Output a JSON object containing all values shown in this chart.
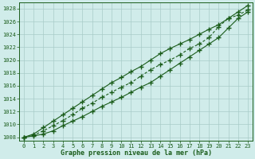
{
  "x": [
    0,
    1,
    2,
    3,
    4,
    5,
    6,
    7,
    8,
    9,
    10,
    11,
    12,
    13,
    14,
    15,
    16,
    17,
    18,
    19,
    20,
    21,
    22,
    23
  ],
  "line1": [
    1008.0,
    1008.2,
    1008.5,
    1009.0,
    1009.8,
    1010.5,
    1011.2,
    1012.0,
    1012.8,
    1013.5,
    1014.2,
    1015.0,
    1015.8,
    1016.5,
    1017.5,
    1018.5,
    1019.5,
    1020.5,
    1021.5,
    1022.5,
    1023.5,
    1025.0,
    1026.5,
    1027.5
  ],
  "line2": [
    1008.0,
    1008.3,
    1009.0,
    1009.8,
    1010.6,
    1011.5,
    1012.5,
    1013.3,
    1014.2,
    1015.0,
    1015.8,
    1016.5,
    1017.5,
    1018.5,
    1019.3,
    1020.0,
    1020.8,
    1021.8,
    1022.5,
    1023.5,
    1025.2,
    1026.5,
    1027.0,
    1027.8
  ],
  "line3": [
    1008.0,
    1008.5,
    1009.5,
    1010.5,
    1011.5,
    1012.5,
    1013.5,
    1014.5,
    1015.5,
    1016.5,
    1017.3,
    1018.2,
    1019.0,
    1020.0,
    1021.0,
    1021.8,
    1022.5,
    1023.2,
    1024.0,
    1024.8,
    1025.5,
    1026.5,
    1027.5,
    1028.5
  ],
  "line_color": "#1a5c1a",
  "bg_color": "#d0ecea",
  "grid_color": "#a8ccc8",
  "xlabel": "Graphe pression niveau de la mer (hPa)",
  "ylim": [
    1007.5,
    1029
  ],
  "xlim": [
    -0.5,
    23.5
  ],
  "yticks": [
    1008,
    1010,
    1012,
    1014,
    1016,
    1018,
    1020,
    1022,
    1024,
    1026,
    1028
  ],
  "xticks": [
    0,
    1,
    2,
    3,
    4,
    5,
    6,
    7,
    8,
    9,
    10,
    11,
    12,
    13,
    14,
    15,
    16,
    17,
    18,
    19,
    20,
    21,
    22,
    23
  ]
}
